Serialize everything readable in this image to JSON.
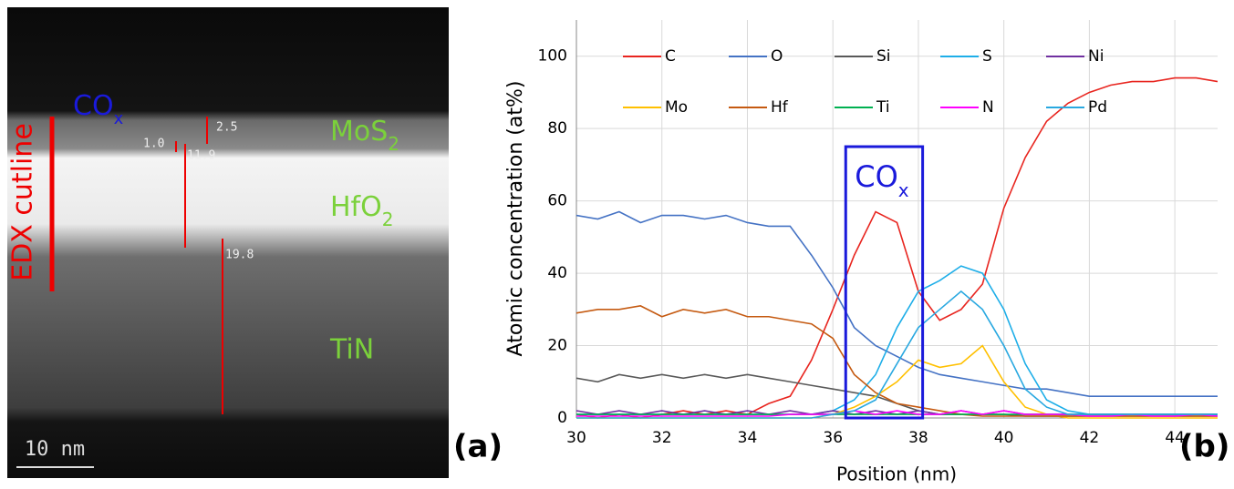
{
  "image_panel": {
    "cox": "CO",
    "cox_sub": "x",
    "cutline": "EDX cutline",
    "mos2": "MoS",
    "mos2_sub": "2",
    "hfo2": "HfO",
    "hfo2_sub": "2",
    "tin": "TiN",
    "d1": "2.5",
    "d2": "1.0",
    "d3": "11.9",
    "d4": "19.8",
    "scale": "10 nm",
    "panel": "(a)"
  },
  "chart_data": {
    "type": "line",
    "panel": "(b)",
    "x_label": "Position   (nm)",
    "y_label": "Atomic   concentration (at%)",
    "x": [
      30,
      30.5,
      31,
      31.5,
      32,
      32.5,
      33,
      33.5,
      34,
      34.5,
      35,
      35.5,
      36,
      36.5,
      37,
      37.5,
      38,
      38.5,
      39,
      39.5,
      40,
      40.5,
      41,
      41.5,
      42,
      42.5,
      43,
      43.5,
      44,
      44.5,
      45
    ],
    "series": [
      {
        "name": "C",
        "color": "#e8251f",
        "values": [
          1,
          0,
          1,
          0,
          1,
          2,
          1,
          2,
          1,
          4,
          6,
          16,
          30,
          45,
          57,
          54,
          35,
          27,
          30,
          37,
          58,
          72,
          82,
          87,
          90,
          92,
          93,
          93,
          94,
          94,
          93
        ]
      },
      {
        "name": "O",
        "color": "#4472c4",
        "values": [
          56,
          55,
          57,
          54,
          56,
          56,
          55,
          56,
          54,
          53,
          53,
          45,
          36,
          25,
          20,
          17,
          14,
          12,
          11,
          10,
          9,
          8,
          8,
          7,
          6,
          6,
          6,
          6,
          6,
          6,
          6
        ]
      },
      {
        "name": "Si",
        "color": "#595959",
        "values": [
          11,
          10,
          12,
          11,
          12,
          11,
          12,
          11,
          12,
          11,
          10,
          9,
          8,
          7,
          6,
          4,
          2,
          1,
          1,
          1,
          1,
          0.5,
          0.5,
          0.5,
          0.5,
          0.5,
          0.5,
          0.5,
          0.5,
          0.5,
          0.5
        ]
      },
      {
        "name": "S",
        "color": "#1eaee8",
        "values": [
          1,
          1,
          1,
          1,
          1,
          1,
          1,
          1,
          1,
          1,
          1,
          1,
          2,
          5,
          12,
          25,
          35,
          38,
          42,
          40,
          30,
          15,
          5,
          2,
          1,
          1,
          1,
          1,
          1,
          1,
          1
        ]
      },
      {
        "name": "Ni",
        "color": "#7030a0",
        "values": [
          2,
          1,
          2,
          1,
          2,
          1,
          2,
          1,
          2,
          1,
          2,
          1,
          2,
          1,
          2,
          1,
          2,
          1,
          2,
          1,
          2,
          1,
          1,
          1,
          1,
          1,
          1,
          1,
          1,
          1,
          1
        ]
      },
      {
        "name": "Mo",
        "color": "#ffc000",
        "values": [
          0,
          0,
          0,
          0,
          0,
          0,
          0,
          0,
          0,
          0,
          0,
          0,
          1,
          3,
          6,
          10,
          16,
          14,
          15,
          20,
          10,
          3,
          1,
          0,
          0,
          0,
          0,
          0,
          0,
          0,
          0
        ]
      },
      {
        "name": "Hf",
        "color": "#c55a11",
        "values": [
          29,
          30,
          30,
          31,
          28,
          30,
          29,
          30,
          28,
          28,
          27,
          26,
          22,
          12,
          7,
          4,
          3,
          2,
          1,
          0.5,
          0.5,
          0.5,
          0.5,
          0.5,
          0.5,
          0.5,
          0.5,
          0.5,
          0.5,
          0.5,
          0.5
        ]
      },
      {
        "name": "Ti",
        "color": "#00b050",
        "values": [
          1,
          1,
          1,
          1,
          1,
          1,
          1,
          1,
          1,
          1,
          1,
          1,
          1,
          1,
          1,
          1,
          1,
          1,
          1,
          1,
          1,
          1,
          1,
          1,
          1,
          1,
          1,
          1,
          1,
          1,
          1
        ]
      },
      {
        "name": "N",
        "color": "#ff00ff",
        "values": [
          0.5,
          0.5,
          0.5,
          0.5,
          0.5,
          0.5,
          0.5,
          0.5,
          0.5,
          0.5,
          1,
          1,
          1,
          2,
          1,
          2,
          1,
          1,
          2,
          1,
          2,
          1,
          1,
          1,
          0.5,
          0.5,
          1,
          0.5,
          0.5,
          1,
          0.5
        ]
      },
      {
        "name": "Pd",
        "color": "#29a8e0",
        "values": [
          0,
          0,
          0,
          0,
          0,
          0,
          0,
          0,
          0,
          0,
          0,
          0,
          1,
          2,
          5,
          15,
          25,
          30,
          35,
          30,
          20,
          8,
          3,
          1,
          1,
          1,
          1,
          1,
          1,
          1,
          1
        ]
      }
    ],
    "xlim": [
      30,
      45
    ],
    "xticks": [
      30,
      32,
      34,
      36,
      38,
      40,
      42,
      44
    ],
    "ylim": [
      0,
      110
    ],
    "yticks": [
      0,
      20,
      40,
      60,
      80,
      100
    ],
    "grid": true,
    "highlight": {
      "label": "CO",
      "subscript": "x",
      "color": "#1a1adb",
      "xrange": [
        36.3,
        38.1
      ],
      "ytop": 75
    }
  }
}
